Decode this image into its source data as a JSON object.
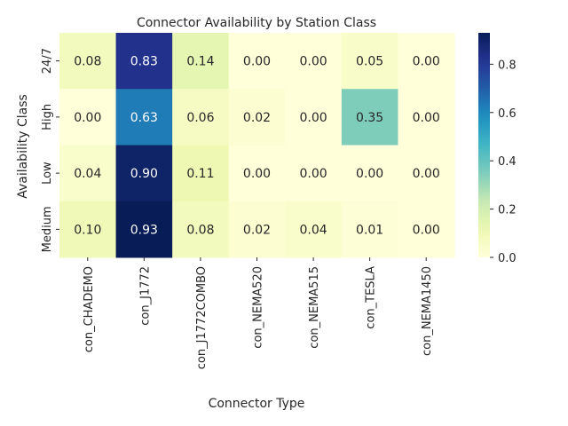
{
  "chart_data": {
    "type": "heatmap",
    "title": "Connector Availability by Station Class",
    "xlabel": "Connector Type",
    "ylabel": "Availability Class",
    "columns": [
      "con_CHADEMO",
      "con_J1772",
      "con_J1772COMBO",
      "con_NEMA520",
      "con_NEMA515",
      "con_TESLA",
      "con_NEMA1450"
    ],
    "rows": [
      "24/7",
      "High",
      "Low",
      "Medium"
    ],
    "values": [
      [
        0.08,
        0.83,
        0.14,
        0.0,
        0.0,
        0.05,
        0.0
      ],
      [
        0.0,
        0.63,
        0.06,
        0.02,
        0.0,
        0.35,
        0.0
      ],
      [
        0.04,
        0.9,
        0.11,
        0.0,
        0.0,
        0.0,
        0.0
      ],
      [
        0.1,
        0.93,
        0.08,
        0.02,
        0.04,
        0.01,
        0.0
      ]
    ],
    "annotation_format": "0.00",
    "colorbar": {
      "colormap": "YlGnBu",
      "vmin": 0.0,
      "vmax": 0.93,
      "ticks": [
        "0.0",
        "0.2",
        "0.4",
        "0.6",
        "0.8"
      ]
    }
  }
}
